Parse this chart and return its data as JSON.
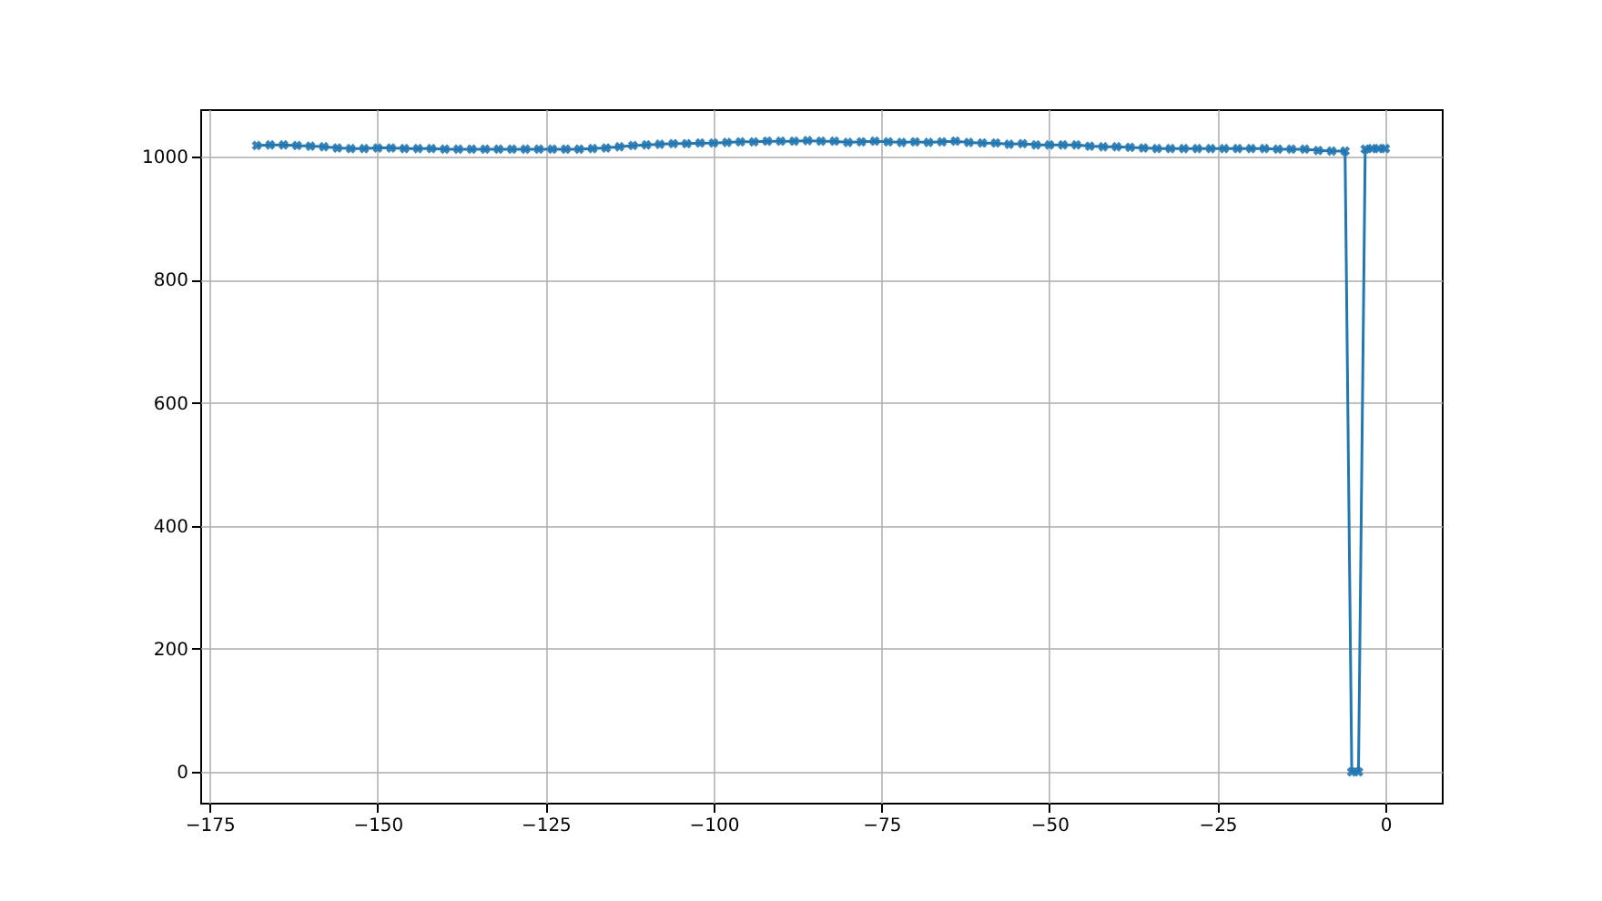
{
  "chart_data": {
    "type": "line",
    "marker": "cross",
    "grid": true,
    "xlim": [
      -176.4,
      8.4
    ],
    "ylim": [
      -50,
      1077
    ],
    "xticks": [
      -175,
      -150,
      -125,
      -100,
      -75,
      -50,
      -25,
      0
    ],
    "yticks": [
      0,
      200,
      400,
      600,
      800,
      1000
    ],
    "x": [
      -168,
      -166,
      -164,
      -162,
      -160,
      -158,
      -156,
      -154,
      -152,
      -150,
      -148,
      -146,
      -144,
      -142,
      -140,
      -138,
      -136,
      -134,
      -132,
      -130,
      -128,
      -126,
      -124,
      -122,
      -120,
      -118,
      -116,
      -114,
      -112,
      -110,
      -108,
      -106,
      -104,
      -102,
      -100,
      -98,
      -96,
      -94,
      -92,
      -90,
      -88,
      -86,
      -84,
      -82,
      -80,
      -78,
      -76,
      -74,
      -72,
      -70,
      -68,
      -66,
      -64,
      -62,
      -60,
      -58,
      -56,
      -54,
      -52,
      -50,
      -48,
      -46,
      -44,
      -42,
      -40,
      -38,
      -36,
      -34,
      -32,
      -30,
      -28,
      -26,
      -24,
      -22,
      -20,
      -18,
      -16,
      -14,
      -12,
      -10,
      -8,
      -6,
      -5,
      -4,
      -3,
      -2,
      -1,
      0
    ],
    "series": [
      {
        "color": "#1f77b4",
        "values": [
          1018,
          1019,
          1019,
          1018,
          1017,
          1016,
          1014,
          1013,
          1013,
          1014,
          1014,
          1013,
          1013,
          1013,
          1012,
          1012,
          1012,
          1012,
          1012,
          1012,
          1012,
          1012,
          1012,
          1012,
          1012,
          1013,
          1014,
          1016,
          1018,
          1019,
          1020,
          1021,
          1021,
          1022,
          1022,
          1023,
          1024,
          1024,
          1025,
          1025,
          1025,
          1026,
          1025,
          1025,
          1023,
          1024,
          1025,
          1024,
          1023,
          1024,
          1023,
          1024,
          1025,
          1023,
          1022,
          1022,
          1020,
          1021,
          1019,
          1019,
          1019,
          1019,
          1017,
          1016,
          1016,
          1015,
          1014,
          1013,
          1013,
          1013,
          1013,
          1013,
          1013,
          1013,
          1013,
          1013,
          1012,
          1012,
          1012,
          1010,
          1009,
          1009,
          0,
          0,
          1012,
          1013,
          1013,
          1013
        ]
      }
    ]
  }
}
